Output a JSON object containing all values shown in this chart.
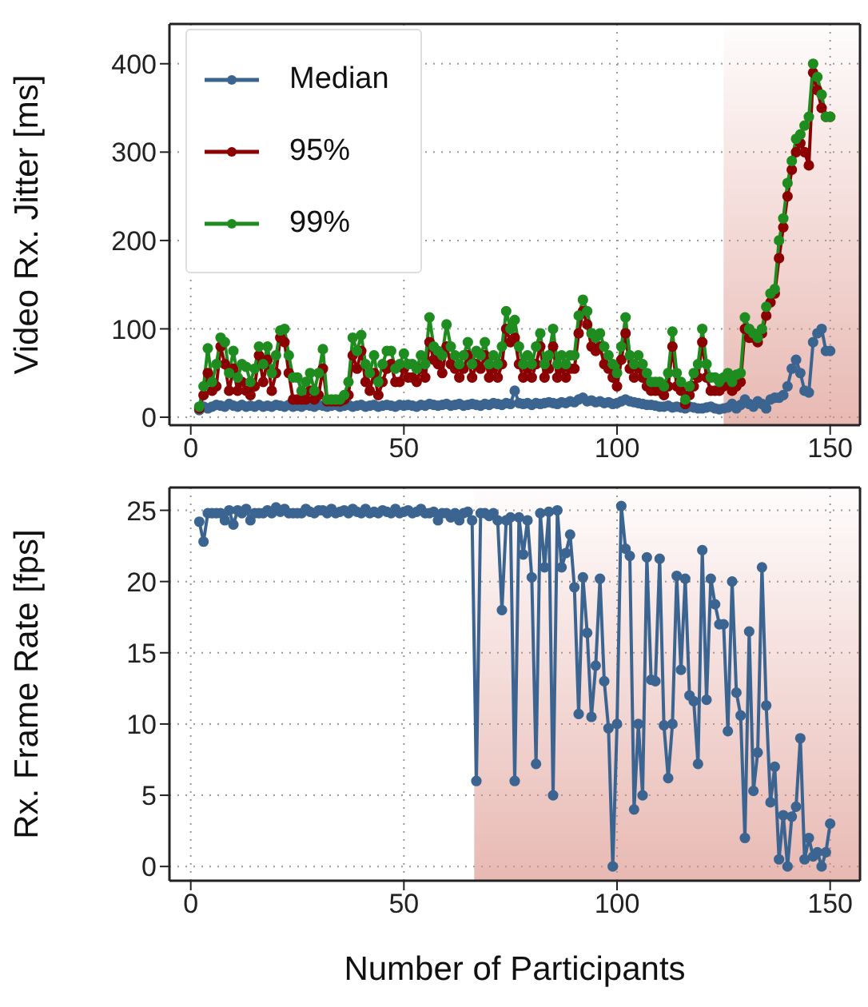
{
  "chart_data": [
    {
      "type": "line",
      "ylabel": "Video Rx. Jitter [ms]",
      "x": [
        2,
        3,
        4,
        5,
        6,
        7,
        8,
        9,
        10,
        11,
        12,
        13,
        14,
        15,
        16,
        17,
        18,
        19,
        20,
        21,
        22,
        23,
        24,
        25,
        26,
        27,
        28,
        29,
        30,
        31,
        32,
        33,
        34,
        35,
        36,
        37,
        38,
        39,
        40,
        41,
        42,
        43,
        44,
        45,
        46,
        47,
        48,
        49,
        50,
        51,
        52,
        53,
        54,
        55,
        56,
        57,
        58,
        59,
        60,
        61,
        62,
        63,
        64,
        65,
        66,
        67,
        68,
        69,
        70,
        71,
        72,
        73,
        74,
        75,
        76,
        77,
        78,
        79,
        80,
        81,
        82,
        83,
        84,
        85,
        86,
        87,
        88,
        89,
        90,
        91,
        92,
        93,
        94,
        95,
        96,
        97,
        98,
        99,
        100,
        101,
        102,
        103,
        104,
        105,
        106,
        107,
        108,
        109,
        110,
        111,
        112,
        113,
        114,
        115,
        116,
        117,
        118,
        119,
        120,
        121,
        122,
        123,
        124,
        125,
        126,
        127,
        128,
        129,
        130,
        131,
        132,
        133,
        134,
        135,
        136,
        137,
        138,
        139,
        140,
        141,
        142,
        143,
        144,
        145,
        146,
        147,
        148,
        149,
        150
      ],
      "series": [
        {
          "name": "Median",
          "color": "#3b6590",
          "values": [
            8,
            12,
            10,
            12,
            14,
            13,
            12,
            15,
            13,
            12,
            14,
            12,
            13,
            12,
            14,
            12,
            13,
            12,
            14,
            13,
            12,
            14,
            12,
            13,
            12,
            14,
            13,
            12,
            14,
            13,
            12,
            13,
            14,
            12,
            13,
            14,
            12,
            13,
            14,
            12,
            13,
            14,
            12,
            13,
            14,
            13,
            12,
            14,
            13,
            14,
            13,
            12,
            14,
            13,
            15,
            14,
            13,
            14,
            15,
            13,
            14,
            15,
            13,
            14,
            15,
            14,
            13,
            15,
            14,
            16,
            15,
            14,
            16,
            15,
            30,
            16,
            15,
            16,
            14,
            16,
            15,
            16,
            17,
            16,
            15,
            17,
            16,
            18,
            17,
            20,
            22,
            18,
            19,
            17,
            18,
            16,
            17,
            15,
            16,
            18,
            20,
            18,
            17,
            16,
            15,
            14,
            14,
            13,
            12,
            12,
            13,
            11,
            12,
            11,
            10,
            12,
            11,
            10,
            10,
            11,
            12,
            10,
            9,
            10,
            11,
            15,
            10,
            14,
            20,
            15,
            12,
            18,
            15,
            10,
            20,
            22,
            22,
            25,
            35,
            55,
            65,
            50,
            30,
            28,
            85,
            95,
            100,
            75,
            75
          ]
        },
        {
          "name": "95%",
          "color": "#8b0000",
          "values": [
            10,
            25,
            50,
            30,
            35,
            80,
            60,
            30,
            55,
            30,
            40,
            30,
            25,
            35,
            70,
            40,
            65,
            30,
            50,
            90,
            85,
            50,
            20,
            20,
            20,
            20,
            30,
            20,
            25,
            55,
            18,
            18,
            18,
            18,
            20,
            25,
            70,
            55,
            75,
            40,
            30,
            50,
            25,
            40,
            55,
            60,
            40,
            40,
            55,
            45,
            45,
            40,
            55,
            45,
            85,
            65,
            60,
            50,
            80,
            60,
            55,
            45,
            55,
            70,
            45,
            60,
            55,
            70,
            45,
            55,
            45,
            60,
            100,
            85,
            90,
            60,
            45,
            55,
            45,
            60,
            80,
            45,
            55,
            80,
            45,
            55,
            45,
            55,
            55,
            95,
            120,
            105,
            80,
            75,
            80,
            60,
            55,
            45,
            35,
            65,
            95,
            55,
            45,
            55,
            45,
            35,
            30,
            30,
            30,
            25,
            35,
            80,
            35,
            30,
            15,
            25,
            35,
            45,
            85,
            45,
            30,
            30,
            30,
            35,
            40,
            30,
            35,
            40,
            100,
            90,
            90,
            85,
            95,
            115,
            130,
            140,
            180,
            215,
            250,
            280,
            300,
            310,
            300,
            285,
            390,
            370,
            350,
            340,
            340
          ]
        },
        {
          "name": "99%",
          "color": "#1f8c1f",
          "values": [
            12,
            35,
            78,
            40,
            60,
            90,
            85,
            50,
            75,
            45,
            60,
            57,
            40,
            55,
            80,
            60,
            80,
            50,
            70,
            98,
            100,
            70,
            45,
            45,
            30,
            40,
            50,
            30,
            50,
            77,
            20,
            20,
            20,
            20,
            25,
            40,
            90,
            75,
            93,
            60,
            50,
            70,
            40,
            60,
            75,
            75,
            55,
            60,
            72,
            60,
            60,
            55,
            70,
            60,
            113,
            80,
            75,
            70,
            105,
            80,
            70,
            60,
            70,
            85,
            60,
            75,
            70,
            85,
            60,
            70,
            60,
            80,
            120,
            100,
            110,
            80,
            60,
            70,
            60,
            80,
            95,
            60,
            70,
            100,
            60,
            70,
            60,
            70,
            70,
            115,
            133,
            120,
            95,
            90,
            95,
            80,
            70,
            60,
            50,
            80,
            113,
            70,
            60,
            70,
            60,
            50,
            40,
            40,
            40,
            35,
            50,
            97,
            50,
            40,
            20,
            35,
            50,
            60,
            100,
            60,
            45,
            45,
            40,
            45,
            50,
            40,
            48,
            50,
            113,
            100,
            95,
            90,
            100,
            125,
            140,
            145,
            200,
            225,
            265,
            290,
            315,
            320,
            330,
            340,
            400,
            385,
            365,
            340,
            340
          ]
        }
      ],
      "xlim": [
        -5,
        157
      ],
      "xticks": [
        0,
        50,
        100,
        150
      ],
      "ylim": [
        -9,
        445
      ],
      "yticks": [
        0,
        100,
        200,
        300,
        400
      ],
      "bands": [
        {
          "axis": "x",
          "from": 125,
          "to": 157,
          "color": "#d98a80"
        }
      ],
      "grid": true,
      "legend": "top left",
      "marker": "circle",
      "line_style": "solid"
    },
    {
      "type": "line",
      "ylabel": "Rx. Frame Rate [fps]",
      "xlabel": "Number of Participants",
      "x": [
        2,
        3,
        4,
        5,
        6,
        7,
        8,
        9,
        10,
        11,
        12,
        13,
        14,
        15,
        16,
        17,
        18,
        19,
        20,
        21,
        22,
        23,
        24,
        25,
        26,
        27,
        28,
        29,
        30,
        31,
        32,
        33,
        34,
        35,
        36,
        37,
        38,
        39,
        40,
        41,
        42,
        43,
        44,
        45,
        46,
        47,
        48,
        49,
        50,
        51,
        52,
        53,
        54,
        55,
        56,
        57,
        58,
        59,
        60,
        61,
        62,
        63,
        64,
        65,
        66,
        67,
        68,
        69,
        70,
        71,
        72,
        73,
        74,
        75,
        76,
        77,
        78,
        79,
        80,
        81,
        82,
        83,
        84,
        85,
        86,
        87,
        88,
        89,
        90,
        91,
        92,
        93,
        94,
        95,
        96,
        97,
        98,
        99,
        100,
        101,
        102,
        103,
        104,
        105,
        106,
        107,
        108,
        109,
        110,
        111,
        112,
        113,
        114,
        115,
        116,
        117,
        118,
        119,
        120,
        121,
        122,
        123,
        124,
        125,
        126,
        127,
        128,
        129,
        130,
        131,
        132,
        133,
        134,
        135,
        136,
        137,
        138,
        139,
        140,
        141,
        142,
        143,
        144,
        145,
        146,
        147,
        148,
        149,
        150
      ],
      "series": [
        {
          "color": "#3b6590",
          "values": [
            24.2,
            22.8,
            24.8,
            24.8,
            24.8,
            24.8,
            24.3,
            25,
            24,
            25,
            24.8,
            25.1,
            24.3,
            24.8,
            24.8,
            24.8,
            25,
            24.8,
            25.2,
            24.9,
            25.1,
            24.8,
            24.8,
            24.8,
            24.8,
            25.1,
            24.9,
            24.8,
            25,
            25,
            24.8,
            25.1,
            24.8,
            24.9,
            25,
            24.8,
            25.1,
            24.9,
            24.8,
            25.1,
            24.8,
            24.9,
            24.8,
            25,
            24.9,
            24.8,
            25.1,
            24.8,
            24.9,
            25,
            24.8,
            24.9,
            25.1,
            24.8,
            24.8,
            24.9,
            24.3,
            24.8,
            24.8,
            24.5,
            24.8,
            24.3,
            24.8,
            24.9,
            24.3,
            6,
            24.8,
            24.8,
            24.6,
            24.8,
            24.3,
            18,
            24.3,
            24.5,
            6,
            24.5,
            21.9,
            24.3,
            20.3,
            7.2,
            24.8,
            21,
            24.9,
            5,
            25,
            21,
            22,
            23.3,
            19.6,
            10.7,
            20.3,
            16.4,
            10.5,
            14.1,
            20.2,
            13,
            9.7,
            0,
            10,
            25.3,
            22.3,
            21.8,
            4,
            10,
            5,
            21.7,
            13.1,
            13,
            21.6,
            9.9,
            6.2,
            10,
            20.4,
            13.8,
            20.2,
            12,
            11.6,
            7.2,
            22.2,
            11.7,
            20.2,
            18.4,
            17,
            17,
            9.5,
            20,
            12.2,
            10.6,
            2,
            16.5,
            5.3,
            8,
            21,
            11.3,
            4.5,
            7,
            0.5,
            3.6,
            0,
            3.5,
            4.2,
            9,
            0.5,
            2,
            0.7,
            1,
            0,
            1,
            3
          ]
        }
      ],
      "xlim": [
        -5,
        157
      ],
      "xticks": [
        0,
        50,
        100,
        150
      ],
      "ylim": [
        -1,
        26.6
      ],
      "yticks": [
        0,
        5,
        10,
        15,
        20,
        25
      ],
      "bands": [
        {
          "axis": "x",
          "from": 66.5,
          "to": 157,
          "color": "#d98a80"
        }
      ],
      "grid": true,
      "marker": "circle",
      "line_style": "solid"
    }
  ]
}
